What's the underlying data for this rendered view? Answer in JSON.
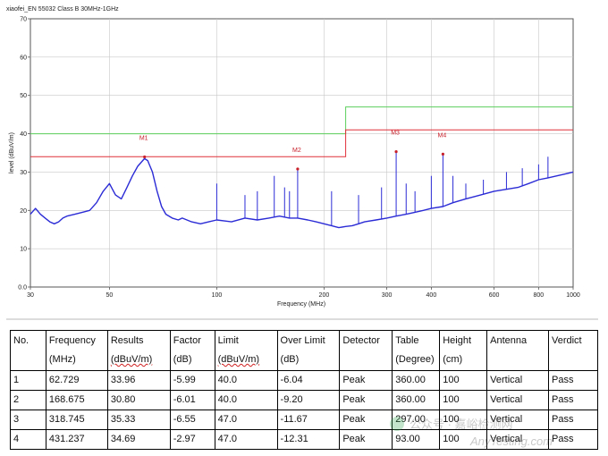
{
  "chart_data": {
    "type": "line",
    "title": "xiaofei_EN 55032 Class B 30MHz-1GHz",
    "xlabel": "Frequency (MHz)",
    "ylabel": "level (dBuV/m)",
    "xscale": "log",
    "xlim": [
      30,
      1000
    ],
    "ylim": [
      0,
      70
    ],
    "yticks": [
      "0.0",
      "10",
      "20",
      "30",
      "40",
      "50",
      "60",
      "70"
    ],
    "xticks": [
      30,
      50,
      100,
      200,
      300,
      400,
      600,
      800,
      1000
    ],
    "grid": true,
    "colors": {
      "trace": "#2b2bd6",
      "limit_qp": "#e0303a",
      "limit_avg": "#5ccf5c",
      "marker": "#c8202a",
      "grid": "#c8c8c8",
      "plot_bg": "#ffffff",
      "frame": "#555555"
    },
    "series": [
      {
        "kind": "trace",
        "x": [
          30,
          31,
          32,
          33,
          34,
          35,
          36,
          37,
          38,
          40,
          42,
          44,
          46,
          48,
          50,
          52,
          54,
          56,
          58,
          60,
          62.7,
          64,
          66,
          68,
          70,
          72,
          75,
          78,
          80,
          85,
          90,
          95,
          100,
          110,
          120,
          130,
          140,
          150,
          160,
          168.7,
          180,
          190,
          200,
          210,
          220,
          230,
          240,
          250,
          260,
          280,
          300,
          318.7,
          340,
          360,
          380,
          400,
          431.2,
          460,
          500,
          550,
          600,
          650,
          700,
          750,
          800,
          850,
          900,
          950,
          1000
        ],
        "y": [
          19,
          20.5,
          19,
          18,
          17,
          16.5,
          17,
          18,
          18.5,
          19,
          19.5,
          20,
          22,
          25,
          27,
          24,
          23,
          26,
          29,
          31.5,
          33.5,
          33,
          30,
          25,
          21,
          19,
          18,
          17.5,
          18,
          17,
          16.5,
          17,
          17.5,
          17,
          18,
          17.5,
          18,
          18.5,
          18,
          18,
          17.5,
          17,
          16.5,
          16,
          15.5,
          15.8,
          16,
          16.5,
          17,
          17.5,
          18,
          18.5,
          19,
          19.5,
          20,
          20.5,
          21,
          22,
          23,
          24,
          25,
          25.5,
          26,
          27,
          28,
          28.5,
          29,
          29.5,
          30
        ]
      },
      {
        "kind": "limit",
        "x": [
          30,
          230,
          230,
          1000
        ],
        "y": [
          40,
          40,
          47,
          47
        ]
      },
      {
        "kind": "limit",
        "x": [
          30,
          230,
          230,
          1000
        ],
        "y": [
          34,
          34,
          41,
          41
        ]
      }
    ],
    "spikes": [
      {
        "x": 100,
        "y": 27
      },
      {
        "x": 120,
        "y": 24
      },
      {
        "x": 130,
        "y": 25
      },
      {
        "x": 145,
        "y": 29
      },
      {
        "x": 155,
        "y": 26
      },
      {
        "x": 160,
        "y": 25
      },
      {
        "x": 210,
        "y": 25
      },
      {
        "x": 250,
        "y": 24
      },
      {
        "x": 290,
        "y": 26
      },
      {
        "x": 340,
        "y": 27
      },
      {
        "x": 360,
        "y": 25
      },
      {
        "x": 400,
        "y": 29
      },
      {
        "x": 460,
        "y": 29
      },
      {
        "x": 500,
        "y": 27
      },
      {
        "x": 560,
        "y": 28
      },
      {
        "x": 650,
        "y": 30
      },
      {
        "x": 720,
        "y": 31
      },
      {
        "x": 800,
        "y": 32
      },
      {
        "x": 850,
        "y": 34
      }
    ],
    "markers": [
      {
        "label": "M1",
        "x": 62.729,
        "y": 33.96
      },
      {
        "label": "M2",
        "x": 168.675,
        "y": 30.8
      },
      {
        "label": "M3",
        "x": 318.745,
        "y": 35.33
      },
      {
        "label": "M4",
        "x": 431.237,
        "y": 34.69
      }
    ]
  },
  "table": {
    "headers": [
      {
        "l1": "No.",
        "l2": ""
      },
      {
        "l1": "Frequency",
        "l2": "(MHz)"
      },
      {
        "l1": "Results",
        "l2": "(dBuV/m)"
      },
      {
        "l1": "Factor",
        "l2": "(dB)"
      },
      {
        "l1": "Limit",
        "l2": "(dBuV/m)"
      },
      {
        "l1": "Over Limit",
        "l2": "(dB)"
      },
      {
        "l1": "Detector",
        "l2": ""
      },
      {
        "l1": "Table",
        "l2": "(Degree)"
      },
      {
        "l1": "Height",
        "l2": "(cm)"
      },
      {
        "l1": "Antenna",
        "l2": ""
      },
      {
        "l1": "Verdict",
        "l2": ""
      }
    ],
    "rows": [
      [
        "1",
        "62.729",
        "33.96",
        "-5.99",
        "40.0",
        "-6.04",
        "Peak",
        "360.00",
        "100",
        "Vertical",
        "Pass"
      ],
      [
        "2",
        "168.675",
        "30.80",
        "-6.01",
        "40.0",
        "-9.20",
        "Peak",
        "360.00",
        "100",
        "Vertical",
        "Pass"
      ],
      [
        "3",
        "318.745",
        "35.33",
        "-6.55",
        "47.0",
        "-11.67",
        "Peak",
        "297.00",
        "100",
        "Vertical",
        "Pass"
      ],
      [
        "4",
        "431.237",
        "34.69",
        "-2.97",
        "47.0",
        "-12.31",
        "Peak",
        "93.00",
        "100",
        "Vertical",
        "Pass"
      ]
    ]
  },
  "watermark": {
    "text": "公众号 · 嘉峪检测网",
    "url": "AnyTesting.com"
  }
}
